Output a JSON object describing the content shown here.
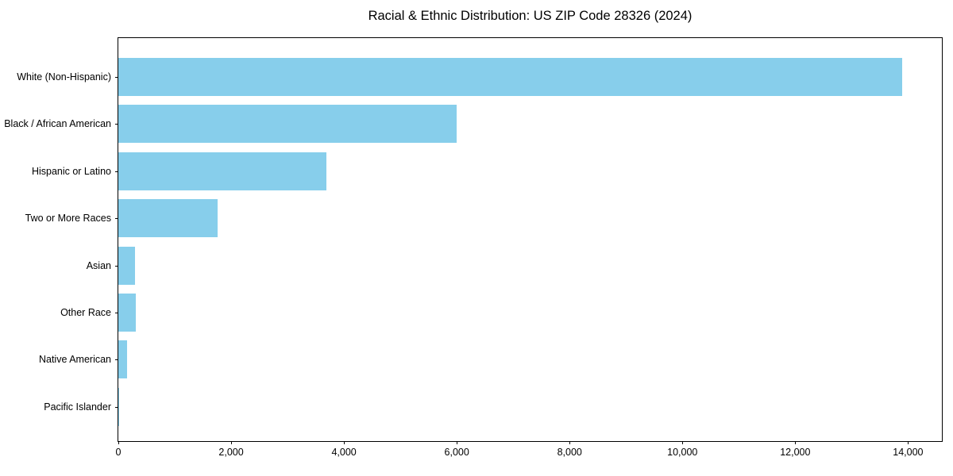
{
  "figure": {
    "title": "Racial & Ethnic Distribution: US ZIP Code 28326 (2024)"
  },
  "chart_data": {
    "type": "bar",
    "orientation": "horizontal",
    "title": "Racial & Ethnic Distribution: US ZIP Code 28326 (2024)",
    "categories": [
      "White (Non-Hispanic)",
      "Black / African American",
      "Hispanic or Latino",
      "Two or More Races",
      "Asian",
      "Other Race",
      "Native American",
      "Pacific Islander"
    ],
    "values": [
      13900,
      6000,
      3690,
      1760,
      290,
      310,
      160,
      15
    ],
    "xlabel": "",
    "ylabel": "",
    "xlim": [
      0,
      14600
    ],
    "xticks": [
      0,
      2000,
      4000,
      6000,
      8000,
      10000,
      12000,
      14000
    ],
    "xtick_labels": [
      "0",
      "2,000",
      "4,000",
      "6,000",
      "8,000",
      "10,000",
      "12,000",
      "14,000"
    ],
    "bar_color": "#87CEEB",
    "axis_color": "#000000",
    "background_color": "#FFFFFF",
    "grid": false,
    "legend": null
  }
}
